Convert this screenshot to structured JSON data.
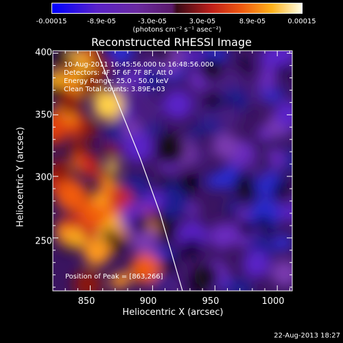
{
  "colorbar": {
    "ticks": [
      "-0.00015",
      "-8.9e-05",
      "-3.0e-05",
      "3.0e-05",
      "8.9e-05",
      "0.00015"
    ],
    "unit": "(photons cm⁻² s⁻¹ asec⁻²)",
    "colors": [
      "#0000ff",
      "#5a22c8",
      "#6a2aa0",
      "#3a0a18",
      "#c0201a",
      "#f05a10",
      "#ffb21a",
      "#ffffe8"
    ]
  },
  "chart_data": {
    "type": "heatmap",
    "title": "Reconstructed RHESSI Image",
    "xlabel": "Heliocentric X (arcsec)",
    "ylabel": "Heliocentric Y (arcsec)",
    "xlim": [
      820,
      1012
    ],
    "ylim": [
      207,
      402
    ],
    "xticks": [
      "850",
      "900",
      "950",
      "1000"
    ],
    "yticks": [
      "400",
      "350",
      "300",
      "250"
    ],
    "annotations": {
      "time_range": "10-Aug-2011 16:45:56.000 to 16:48:56.000",
      "detectors": "Detectors: 4F 5F 6F 7F 8F, Att 0",
      "energy": "Energy Range: 25.0 - 50.0 keV",
      "clean": "Clean     Total counts: 3.89E+03",
      "peak": "Position of Peak = [863,266]"
    },
    "limb_curve_x": [
      855,
      872,
      890,
      906,
      918,
      924
    ],
    "limb_curve_y": [
      402,
      360,
      315,
      270,
      228,
      207
    ]
  },
  "timestamp": "22-Aug-2013 18:27"
}
